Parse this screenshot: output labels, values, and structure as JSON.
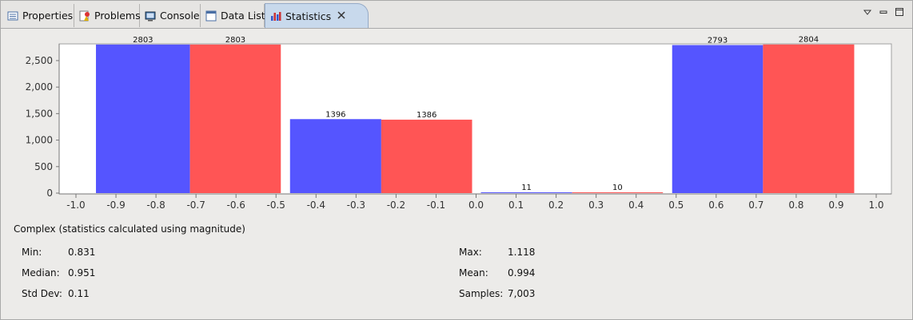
{
  "tabs": [
    {
      "label": "Properties",
      "icon": "properties-icon"
    },
    {
      "label": "Problems",
      "icon": "problems-icon"
    },
    {
      "label": "Console",
      "icon": "console-icon"
    },
    {
      "label": "Data List",
      "icon": "data-list-icon"
    },
    {
      "label": "Statistics",
      "icon": "statistics-icon",
      "active": true
    }
  ],
  "view_controls": [
    "view-menu-icon",
    "minimize-icon",
    "maximize-icon"
  ],
  "colors": {
    "series_a": "#5555ff",
    "series_b": "#ff5555"
  },
  "chart_data": {
    "type": "bar",
    "title": "",
    "xlabel": "",
    "ylabel": "",
    "xlim": [
      -1.0,
      1.0
    ],
    "ylim": [
      0,
      2800
    ],
    "x_ticks": [
      "-1.0",
      "-0.9",
      "-0.8",
      "-0.7",
      "-0.6",
      "-0.5",
      "-0.4",
      "-0.3",
      "-0.2",
      "-0.1",
      "0.0",
      "0.1",
      "0.2",
      "0.3",
      "0.4",
      "0.5",
      "0.6",
      "0.7",
      "0.8",
      "0.9",
      "1.0"
    ],
    "y_ticks": [
      "0",
      "500",
      "1,000",
      "1,500",
      "2,000",
      "2,500"
    ],
    "grid": false,
    "bars": [
      {
        "x0": -0.95,
        "x1": -0.715,
        "value": 2803,
        "label": "2803",
        "color": "#5555ff"
      },
      {
        "x0": -0.715,
        "x1": -0.488,
        "value": 2803,
        "label": "2803",
        "color": "#ff5555"
      },
      {
        "x0": -0.465,
        "x1": -0.237,
        "value": 1396,
        "label": "1396",
        "color": "#5555ff"
      },
      {
        "x0": -0.237,
        "x1": -0.01,
        "value": 1386,
        "label": "1386",
        "color": "#ff5555"
      },
      {
        "x0": 0.012,
        "x1": 0.24,
        "value": 11,
        "label": "11",
        "color": "#5555ff"
      },
      {
        "x0": 0.24,
        "x1": 0.467,
        "value": 10,
        "label": "10",
        "color": "#ff5555"
      },
      {
        "x0": 0.49,
        "x1": 0.717,
        "value": 2793,
        "label": "2793",
        "color": "#5555ff"
      },
      {
        "x0": 0.717,
        "x1": 0.945,
        "value": 2804,
        "label": "2804",
        "color": "#ff5555"
      }
    ]
  },
  "stats": {
    "title": "Complex (statistics calculated using magnitude)",
    "min_label": "Min:",
    "min_value": "0.831",
    "median_label": "Median:",
    "median_value": "0.951",
    "std_label": "Std Dev:",
    "std_value": "0.11",
    "max_label": "Max:",
    "max_value": "1.118",
    "mean_label": "Mean:",
    "mean_value": "0.994",
    "samples_label": "Samples:",
    "samples_value": "7,003"
  }
}
